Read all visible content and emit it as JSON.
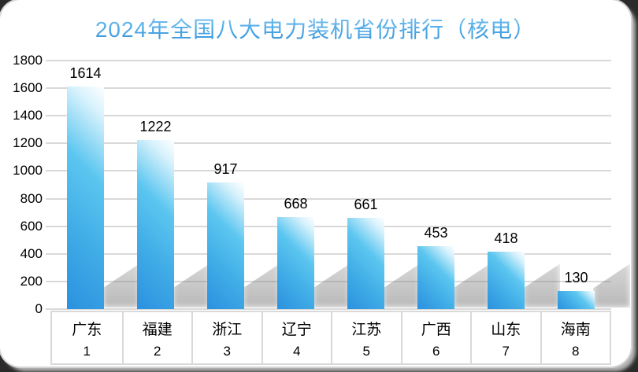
{
  "title": "2024年全国八大电力装机省份排行（核电）",
  "chart_data": {
    "type": "bar",
    "title": "2024年全国八大电力装机省份排行（核电）",
    "categories": [
      "广东",
      "福建",
      "浙江",
      "辽宁",
      "江苏",
      "广西",
      "山东",
      "海南"
    ],
    "category_ranks": [
      "1",
      "2",
      "3",
      "4",
      "5",
      "6",
      "7",
      "8"
    ],
    "values": [
      1614,
      1222,
      917,
      668,
      661,
      453,
      418,
      130
    ],
    "data_labels": true,
    "xlabel": "",
    "ylabel": "",
    "ylim": [
      0,
      1800
    ],
    "ytick_interval": 200,
    "yticks": [
      0,
      200,
      400,
      600,
      800,
      1000,
      1200,
      1400,
      1600,
      1800
    ],
    "grid": true,
    "legend": "none"
  },
  "colors": {
    "title_gradient_top": "#8acaf3",
    "title_gradient_bottom": "#3795dc",
    "bar_gradient_dark": "#2b91df",
    "bar_gradient_mid": "#5cc6f0",
    "bar_gradient_light": "#ffffff",
    "gridline": "#d9d9d9",
    "axis_text": "#000000",
    "card_background": "#ffffff",
    "page_background": "#2b2b2b"
  }
}
